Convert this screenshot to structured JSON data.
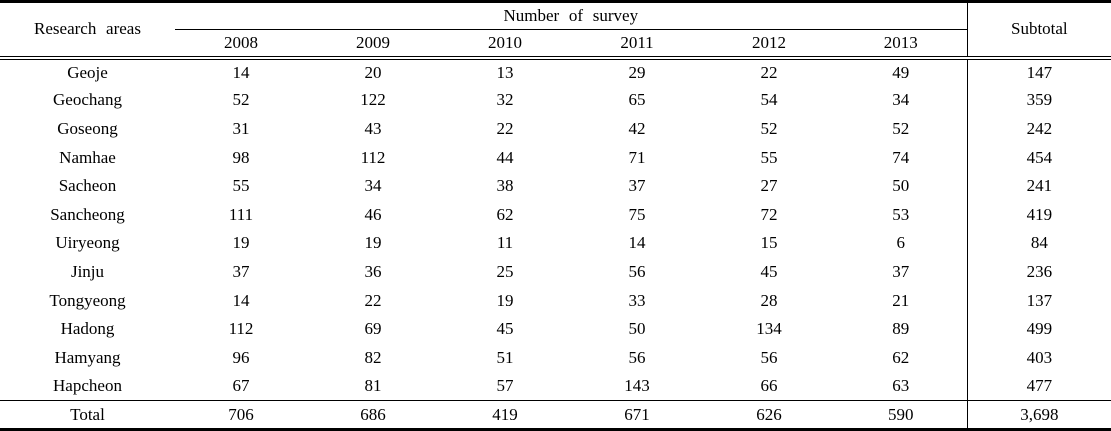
{
  "colors": {
    "text": "#000000",
    "border": "#000000",
    "background": "#ffffff"
  },
  "table": {
    "corner_header": "Research areas",
    "group_header": "Number of survey",
    "subtotal_header": "Subtotal",
    "year_headers": [
      "2008",
      "2009",
      "2010",
      "2011",
      "2012",
      "2013"
    ],
    "rows": [
      {
        "area": "Geoje",
        "values": [
          "14",
          "20",
          "13",
          "29",
          "22",
          "49"
        ],
        "subtotal": "147"
      },
      {
        "area": "Geochang",
        "values": [
          "52",
          "122",
          "32",
          "65",
          "54",
          "34"
        ],
        "subtotal": "359"
      },
      {
        "area": "Goseong",
        "values": [
          "31",
          "43",
          "22",
          "42",
          "52",
          "52"
        ],
        "subtotal": "242"
      },
      {
        "area": "Namhae",
        "values": [
          "98",
          "112",
          "44",
          "71",
          "55",
          "74"
        ],
        "subtotal": "454"
      },
      {
        "area": "Sacheon",
        "values": [
          "55",
          "34",
          "38",
          "37",
          "27",
          "50"
        ],
        "subtotal": "241"
      },
      {
        "area": "Sancheong",
        "values": [
          "111",
          "46",
          "62",
          "75",
          "72",
          "53"
        ],
        "subtotal": "419"
      },
      {
        "area": "Uiryeong",
        "values": [
          "19",
          "19",
          "11",
          "14",
          "15",
          "6"
        ],
        "subtotal": "84"
      },
      {
        "area": "Jinju",
        "values": [
          "37",
          "36",
          "25",
          "56",
          "45",
          "37"
        ],
        "subtotal": "236"
      },
      {
        "area": "Tongyeong",
        "values": [
          "14",
          "22",
          "19",
          "33",
          "28",
          "21"
        ],
        "subtotal": "137"
      },
      {
        "area": "Hadong",
        "values": [
          "112",
          "69",
          "45",
          "50",
          "134",
          "89"
        ],
        "subtotal": "499"
      },
      {
        "area": "Hamyang",
        "values": [
          "96",
          "82",
          "51",
          "56",
          "56",
          "62"
        ],
        "subtotal": "403"
      },
      {
        "area": "Hapcheon",
        "values": [
          "67",
          "81",
          "57",
          "143",
          "66",
          "63"
        ],
        "subtotal": "477"
      },
      {
        "area": "Total",
        "values": [
          "706",
          "686",
          "419",
          "671",
          "626",
          "590"
        ],
        "subtotal": "3,698",
        "is_total": true
      }
    ]
  },
  "chart_data": {
    "type": "table",
    "title": "",
    "columns": [
      "Research areas",
      "2008",
      "2009",
      "2010",
      "2011",
      "2012",
      "2013",
      "Subtotal"
    ],
    "rows": [
      [
        "Geoje",
        14,
        20,
        13,
        29,
        22,
        49,
        147
      ],
      [
        "Geochang",
        52,
        122,
        32,
        65,
        54,
        34,
        359
      ],
      [
        "Goseong",
        31,
        43,
        22,
        42,
        52,
        52,
        242
      ],
      [
        "Namhae",
        98,
        112,
        44,
        71,
        55,
        74,
        454
      ],
      [
        "Sacheon",
        55,
        34,
        38,
        37,
        27,
        50,
        241
      ],
      [
        "Sancheong",
        111,
        46,
        62,
        75,
        72,
        53,
        419
      ],
      [
        "Uiryeong",
        19,
        19,
        11,
        14,
        15,
        6,
        84
      ],
      [
        "Jinju",
        37,
        36,
        25,
        56,
        45,
        37,
        236
      ],
      [
        "Tongyeong",
        14,
        22,
        19,
        33,
        28,
        21,
        137
      ],
      [
        "Hadong",
        112,
        69,
        45,
        50,
        134,
        89,
        499
      ],
      [
        "Hamyang",
        96,
        82,
        51,
        56,
        56,
        62,
        403
      ],
      [
        "Hapcheon",
        67,
        81,
        57,
        143,
        66,
        63,
        477
      ],
      [
        "Total",
        706,
        686,
        419,
        671,
        626,
        590,
        3698
      ]
    ]
  }
}
